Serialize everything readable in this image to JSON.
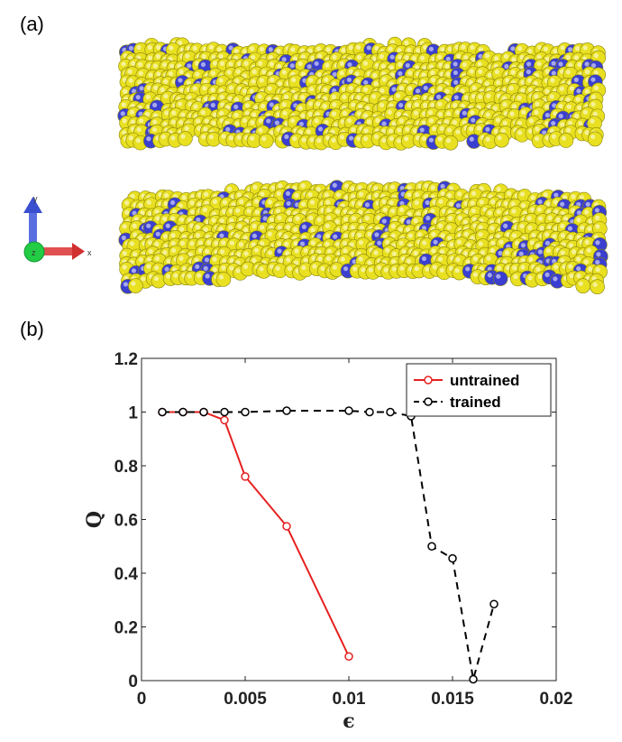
{
  "panels": {
    "a": "(a)",
    "b": "(b)"
  },
  "axes_indicator": {
    "x": "x",
    "y": "y",
    "z": "z"
  },
  "colors": {
    "atom_major": "#e8e020",
    "atom_minor": "#3a3fd0",
    "untrained": "#e62020",
    "trained": "#000000"
  },
  "chart_data": {
    "type": "line",
    "xlabel": "ϵ",
    "ylabel": "Q",
    "xlim": [
      0,
      0.02
    ],
    "ylim": [
      0,
      1.2
    ],
    "xticks": [
      0,
      0.005,
      0.01,
      0.015,
      0.02
    ],
    "xtick_labels": [
      "0",
      "0.005",
      "0.01",
      "0.015",
      "0.02"
    ],
    "yticks": [
      0,
      0.2,
      0.4,
      0.6,
      0.8,
      1,
      1.2
    ],
    "ytick_labels": [
      "0",
      "0.2",
      "0.4",
      "0.6",
      "0.8",
      "1",
      "1.2"
    ],
    "legend_position": "top-right",
    "series": [
      {
        "name": "untrained",
        "style": "solid",
        "color": "#e62020",
        "x": [
          0.001,
          0.002,
          0.003,
          0.004,
          0.005,
          0.007,
          0.01
        ],
        "y": [
          1.0,
          1.0,
          1.0,
          0.97,
          0.76,
          0.575,
          0.09
        ]
      },
      {
        "name": "trained",
        "style": "dashed",
        "color": "#000000",
        "x": [
          0.001,
          0.002,
          0.003,
          0.004,
          0.005,
          0.007,
          0.01,
          0.011,
          0.012,
          0.013,
          0.014,
          0.015,
          0.016,
          0.017
        ],
        "y": [
          1.0,
          1.0,
          1.0,
          1.0,
          1.0,
          1.005,
          1.005,
          1.0,
          1.0,
          0.985,
          0.5,
          0.455,
          0.005,
          0.285
        ]
      }
    ]
  }
}
